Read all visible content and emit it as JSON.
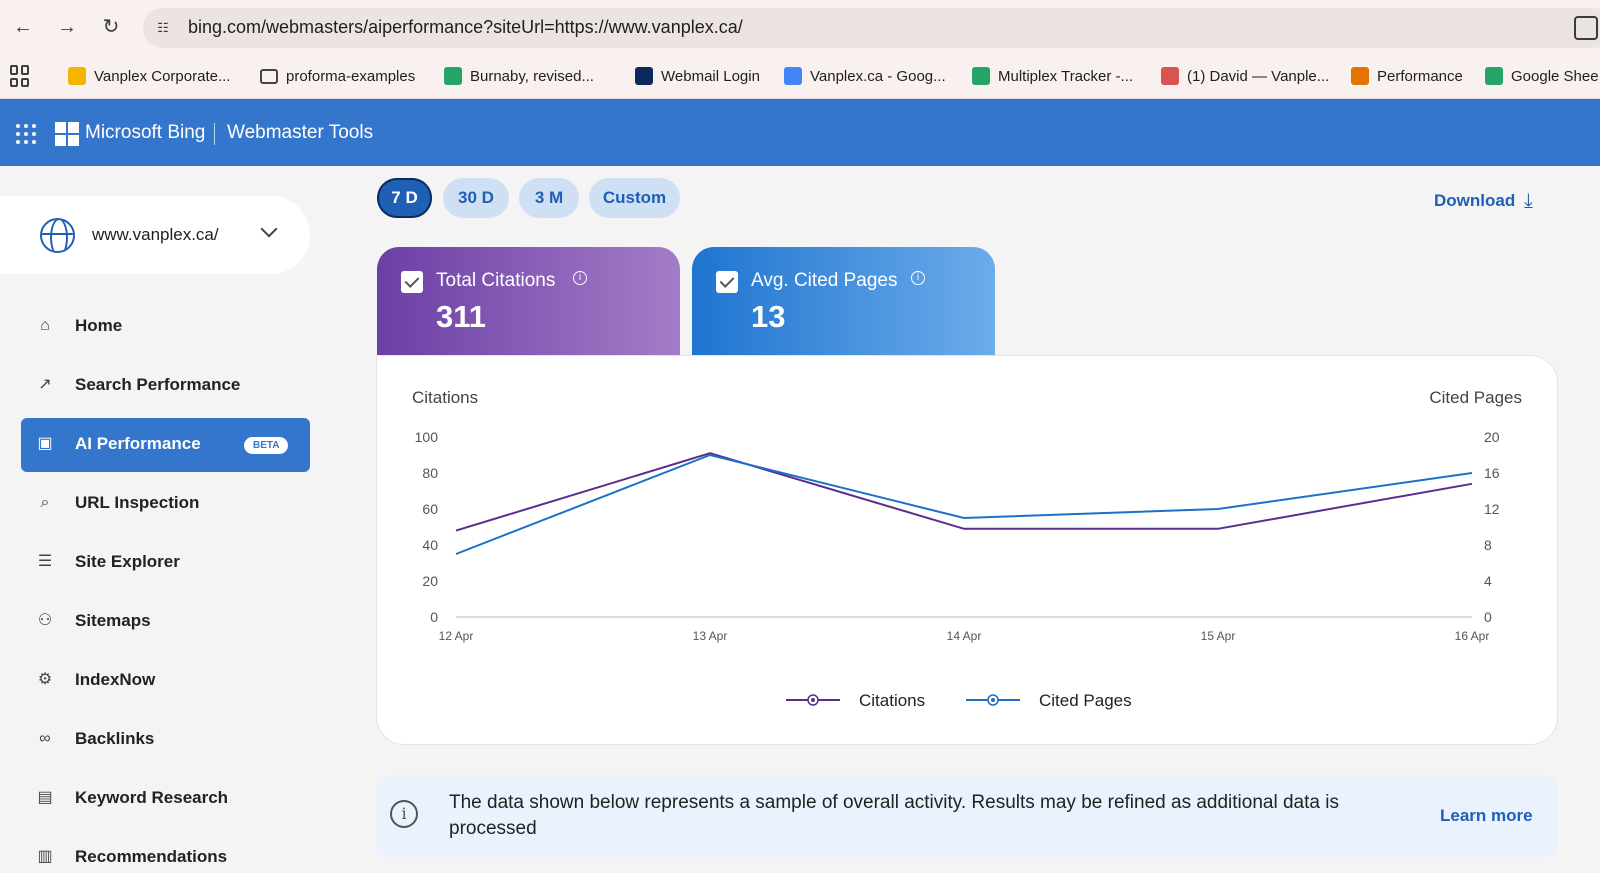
{
  "browser": {
    "url": "bing.com/webmasters/aiperformance?siteUrl=https://www.vanplex.ca/",
    "bookmarks": [
      {
        "label": "Vanplex Corporate...",
        "icon": "google-drive-icon",
        "color": "#f4b400"
      },
      {
        "label": "proforma-examples",
        "icon": "folder-icon",
        "color": "#ffffff"
      },
      {
        "label": "Burnaby, revised...",
        "icon": "google-sheets-icon",
        "color": "#23a566"
      },
      {
        "label": "Webmail Login",
        "icon": "webmail-icon",
        "color": "#0b2a5e"
      },
      {
        "label": "Vanplex.ca - Goog...",
        "icon": "google-icon",
        "color": "#4285f4"
      },
      {
        "label": "Multiplex Tracker -...",
        "icon": "google-sheets-icon",
        "color": "#23a566"
      },
      {
        "label": "(1) David — Vanple...",
        "icon": "house-icon",
        "color": "#d9534f"
      },
      {
        "label": "Performance",
        "icon": "analytics-icon",
        "color": "#e37400"
      },
      {
        "label": "Google Shee",
        "icon": "google-sheets-icon",
        "color": "#23a566"
      }
    ]
  },
  "header": {
    "brand": "Microsoft Bing",
    "product": "Webmaster Tools"
  },
  "sidebar": {
    "site": "www.vanplex.ca/",
    "items": [
      {
        "label": "Home",
        "icon": "home-icon",
        "glyph": "⌂"
      },
      {
        "label": "Search Performance",
        "icon": "trending-up-icon",
        "glyph": "↗"
      },
      {
        "label": "AI Performance",
        "icon": "ai-chart-icon",
        "glyph": "▣",
        "badge": "BETA",
        "active": true
      },
      {
        "label": "URL Inspection",
        "icon": "magnifier-icon",
        "glyph": "⌕"
      },
      {
        "label": "Site Explorer",
        "icon": "document-list-icon",
        "glyph": "☰"
      },
      {
        "label": "Sitemaps",
        "icon": "sitemap-icon",
        "glyph": "⚇"
      },
      {
        "label": "IndexNow",
        "icon": "gear-icon",
        "glyph": "⚙"
      },
      {
        "label": "Backlinks",
        "icon": "link-icon",
        "glyph": "∞"
      },
      {
        "label": "Keyword Research",
        "icon": "document-icon",
        "glyph": "▤"
      },
      {
        "label": "Recommendations",
        "icon": "checklist-icon",
        "glyph": "▥"
      }
    ]
  },
  "main": {
    "ranges": [
      "7 D",
      "30 D",
      "3 M",
      "Custom"
    ],
    "active_range": "7 D",
    "download_label": "Download",
    "metrics": {
      "citations_label": "Total Citations",
      "citations_value": "311",
      "pages_label": "Avg. Cited Pages",
      "pages_value": "13"
    },
    "banner_text": "The data shown below represents a sample of overall activity. Results may be refined as additional data is processed",
    "learn_more": "Learn more"
  },
  "chart_data": {
    "type": "line",
    "categories": [
      "12 Apr",
      "13 Apr",
      "14 Apr",
      "15 Apr",
      "16 Apr"
    ],
    "series": [
      {
        "name": "Citations",
        "axis": "left",
        "color": "#5b2d8e",
        "values": [
          48,
          91,
          49,
          49,
          74
        ]
      },
      {
        "name": "Cited Pages",
        "axis": "right",
        "color": "#1a72c7",
        "values": [
          7,
          18,
          11,
          12,
          16
        ]
      }
    ],
    "ylabel_left": "Citations",
    "ylabel_right": "Cited Pages",
    "ylim_left": [
      0,
      100
    ],
    "ylim_right": [
      0,
      20
    ],
    "yticks_left": [
      "0",
      "20",
      "40",
      "60",
      "80",
      "100"
    ],
    "yticks_right": [
      "0",
      "4",
      "8",
      "12",
      "16",
      "20"
    ],
    "grid": false,
    "legend": "bottom-center"
  }
}
